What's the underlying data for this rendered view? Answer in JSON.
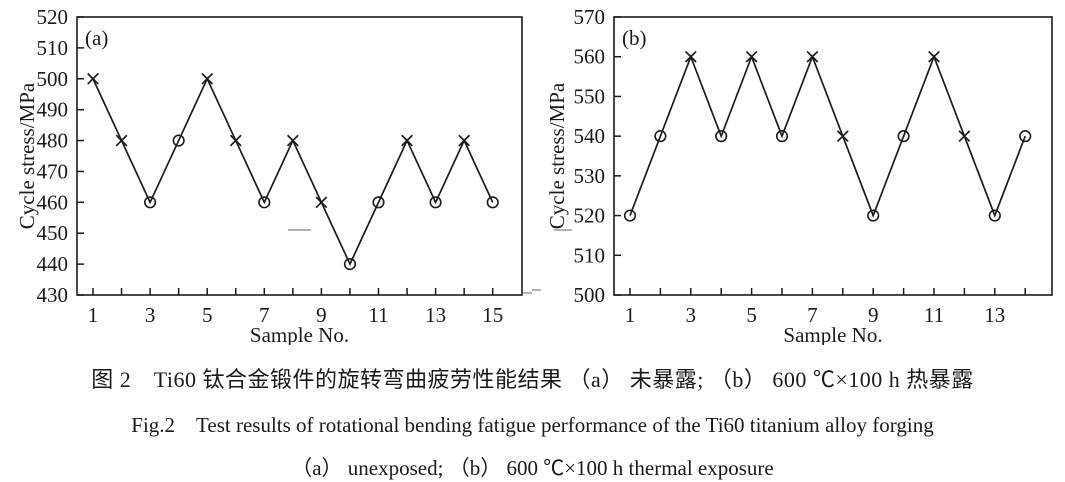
{
  "figure": {
    "caption_zh": "图 2　Ti60 钛合金锻件的旋转弯曲疲劳性能结果 （a） 未暴露; （b） 600 ℃×100 h 热暴露",
    "caption_en_line1": "Fig.2　Test results of rotational bending fatigue performance of the Ti60 titanium alloy forging",
    "caption_en_line2": "（a） unexposed; （b） 600 ℃×100 h thermal exposure"
  },
  "colors": {
    "line": "#1c1c1c",
    "text": "#1a1a1a",
    "artifact": "#9a9a9a"
  },
  "chart_data": [
    {
      "type": "line",
      "panel_label": "(a)",
      "title": "",
      "xlabel": "Sample No.",
      "ylabel": "Cycle stress/MPa",
      "ylim": [
        430,
        520
      ],
      "ytick_interval": 10,
      "grid": false,
      "legend": "none",
      "categories": [
        1,
        2,
        3,
        4,
        5,
        6,
        7,
        8,
        9,
        10,
        11,
        12,
        13,
        14,
        15
      ],
      "xticks_labeled": [
        1,
        3,
        5,
        7,
        9,
        11,
        13,
        15
      ],
      "series": [
        {
          "name": "cycle stress (unexposed)",
          "values": [
            500,
            480,
            460,
            480,
            500,
            480,
            460,
            480,
            460,
            440,
            460,
            480,
            460,
            480,
            460
          ],
          "markers": [
            "x",
            "x",
            "o",
            "o",
            "x",
            "x",
            "o",
            "x",
            "x",
            "o",
            "o",
            "x",
            "o",
            "x",
            "o"
          ]
        }
      ]
    },
    {
      "type": "line",
      "panel_label": "(b)",
      "title": "",
      "xlabel": "Sample No.",
      "ylabel": "Cycle stress/MPa",
      "ylim": [
        500,
        570
      ],
      "ytick_interval": 10,
      "grid": false,
      "legend": "none",
      "categories": [
        1,
        2,
        3,
        4,
        5,
        6,
        7,
        8,
        9,
        10,
        11,
        12,
        13,
        14
      ],
      "xticks_labeled": [
        1,
        3,
        5,
        7,
        9,
        11,
        13
      ],
      "series": [
        {
          "name": "cycle stress (600 ℃×100 h thermal exposure)",
          "values": [
            520,
            540,
            560,
            540,
            560,
            540,
            560,
            540,
            520,
            540,
            560,
            540,
            520,
            540
          ],
          "markers": [
            "o",
            "o",
            "x",
            "o",
            "x",
            "o",
            "x",
            "x",
            "o",
            "o",
            "x",
            "x",
            "o",
            "o"
          ]
        }
      ]
    }
  ]
}
